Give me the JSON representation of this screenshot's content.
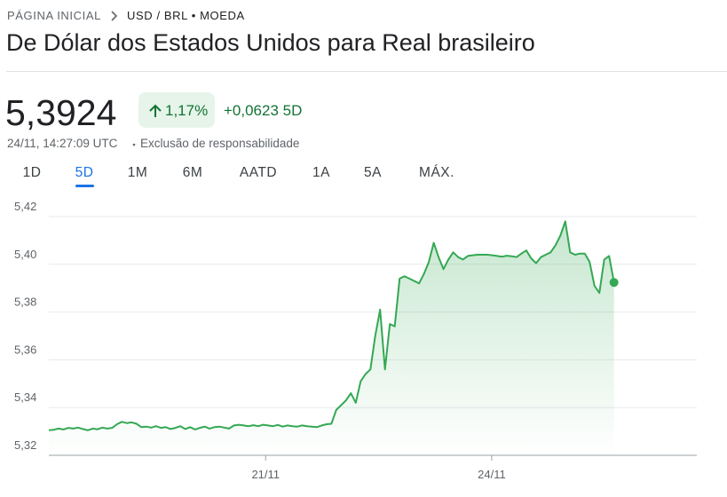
{
  "breadcrumb": {
    "home": "PÁGINA INICIAL",
    "current": "USD / BRL • MOEDA"
  },
  "title": "De Dólar dos Estados Unidos para Real brasileiro",
  "price": "5,3924",
  "change_percent": "1,17%",
  "change": "+0,0623 5D",
  "timestamp": "24/11, 14:27:09 UTC",
  "disclaimer": "Exclusão de responsabilidade",
  "tabs": [
    "1D",
    "5D",
    "1M",
    "6M",
    "AATD",
    "1A",
    "5A",
    "MÁX."
  ],
  "selected_tab": "5D",
  "chart_data": {
    "type": "line",
    "color": "#34a853",
    "values": [
      5.3305,
      5.3307,
      5.3312,
      5.3308,
      5.3315,
      5.3312,
      5.3316,
      5.331,
      5.3305,
      5.3312,
      5.3309,
      5.3316,
      5.3312,
      5.3315,
      5.333,
      5.334,
      5.3335,
      5.3338,
      5.3332,
      5.3318,
      5.332,
      5.3316,
      5.3322,
      5.3315,
      5.3318,
      5.331,
      5.3315,
      5.3322,
      5.331,
      5.3318,
      5.3308,
      5.3315,
      5.332,
      5.3312,
      5.3318,
      5.332,
      5.3316,
      5.3312,
      5.3325,
      5.3328,
      5.3325,
      5.3322,
      5.3326,
      5.3322,
      5.3328,
      5.3325,
      5.3322,
      5.3327,
      5.332,
      5.3325,
      5.3322,
      5.332,
      5.3325,
      5.3322,
      5.332,
      5.3318,
      5.3325,
      5.333,
      5.3332,
      5.339,
      5.341,
      5.343,
      5.346,
      5.342,
      5.351,
      5.354,
      5.356,
      5.37,
      5.381,
      5.356,
      5.375,
      5.374,
      5.394,
      5.395,
      5.394,
      5.393,
      5.392,
      5.396,
      5.401,
      5.409,
      5.403,
      5.398,
      5.402,
      5.405,
      5.403,
      5.402,
      5.4035,
      5.4038,
      5.404,
      5.404,
      5.404,
      5.4038,
      5.4035,
      5.4032,
      5.4036,
      5.4034,
      5.403,
      5.4045,
      5.4058,
      5.4025,
      5.4005,
      5.403,
      5.404,
      5.405,
      5.408,
      5.412,
      5.418,
      5.405,
      5.404,
      5.4045,
      5.4045,
      5.401,
      5.391,
      5.388,
      5.402,
      5.4035,
      5.3924
    ],
    "xlim": [
      0,
      133
    ],
    "xticks": [
      {
        "value": 44.5,
        "label": "21/11"
      },
      {
        "value": 90.9,
        "label": "24/11"
      }
    ],
    "ylim": [
      5.32,
      5.42
    ],
    "yticks": [
      {
        "value": 5.32,
        "label": "5,32"
      },
      {
        "value": 5.34,
        "label": "5,34"
      },
      {
        "value": 5.36,
        "label": "5,36"
      },
      {
        "value": 5.38,
        "label": "5,38"
      },
      {
        "value": 5.4,
        "label": "5,40"
      },
      {
        "value": 5.42,
        "label": "5,42"
      }
    ],
    "grid": true
  }
}
